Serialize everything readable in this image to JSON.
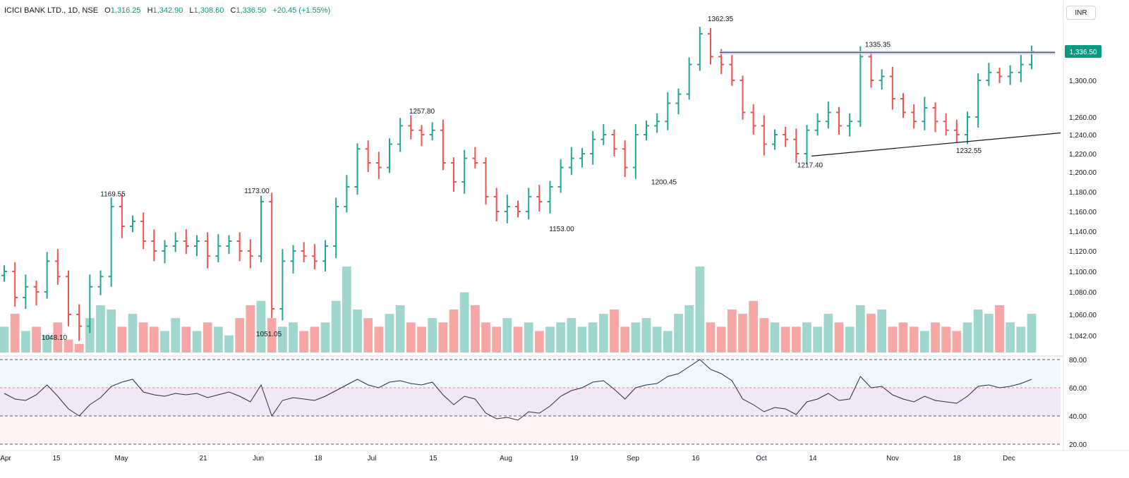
{
  "symbol_title": "ICICI BANK LTD., 1D, NSE",
  "ohlc": {
    "o_label": "O",
    "open": "1,316.25",
    "h_label": "H",
    "high": "1,342.90",
    "l_label": "L",
    "low": "1,308.60",
    "c_label": "C",
    "close": "1,336.50",
    "change": "+20.45 (+1.55%)"
  },
  "currency": "INR",
  "last_price_label": "1,336.50",
  "colors": {
    "up": "#26a69a",
    "down": "#ef5350",
    "vol_up": "#9fd6cd",
    "vol_down": "#f6a7a5",
    "rsi_line": "#7e57c2",
    "rsi_band": "#ede7f6",
    "trend": "#131722",
    "resistance": "#9fa8da",
    "price_tag": "#089981"
  },
  "chart_data": {
    "type": "ohlc-bar",
    "y_axis_price": {
      "ticks": [
        "1,300.00",
        "1,260.00",
        "1,240.00",
        "1,220.00",
        "1,200.00",
        "1,180.00",
        "1,160.00",
        "1,140.00",
        "1,120.00",
        "1,100.00",
        "1,080.00",
        "1,060.00",
        "1,042.00"
      ],
      "values": [
        1300,
        1260,
        1240,
        1220,
        1200,
        1180,
        1160,
        1140,
        1120,
        1100,
        1080,
        1060,
        1042
      ],
      "scale": "log-like"
    },
    "y_axis_rsi": {
      "ticks": [
        "80.00",
        "60.00",
        "40.00",
        "20.00"
      ],
      "values": [
        80,
        60,
        40,
        20
      ]
    },
    "x_axis_labels": [
      "Apr",
      "15",
      "May",
      "21",
      "Jun",
      "18",
      "Jul",
      "15",
      "Aug",
      "19",
      "Sep",
      "16",
      "Oct",
      "14",
      "Nov",
      "18",
      "Dec"
    ],
    "annotations": [
      {
        "text": "1169.55",
        "value": 1169.55
      },
      {
        "text": "1173.00",
        "value": 1173.0
      },
      {
        "text": "1048.10",
        "value": 1048.1
      },
      {
        "text": "1051.05",
        "value": 1051.05
      },
      {
        "text": "1257.80",
        "value": 1257.8
      },
      {
        "text": "1153.00",
        "value": 1153.0
      },
      {
        "text": "1200.45",
        "value": 1200.45
      },
      {
        "text": "1362.35",
        "value": 1362.35
      },
      {
        "text": "1335.35",
        "value": 1335.35
      },
      {
        "text": "1217.40",
        "value": 1217.4
      },
      {
        "text": "1232.55",
        "value": 1232.55
      }
    ],
    "resistance_level": 1335.35,
    "support_trendline": {
      "from": 1217.4,
      "to_extended": 1242
    },
    "rsi_levels": {
      "upper": 80,
      "mid": 60,
      "low": 40,
      "bottom": 20
    },
    "price_path": [
      1100,
      1075,
      1085,
      1080,
      1110,
      1095,
      1060,
      1050,
      1085,
      1095,
      1165,
      1145,
      1150,
      1130,
      1120,
      1125,
      1130,
      1125,
      1130,
      1115,
      1125,
      1130,
      1120,
      1115,
      1170,
      1065,
      1110,
      1120,
      1115,
      1110,
      1125,
      1165,
      1185,
      1225,
      1210,
      1205,
      1230,
      1250,
      1245,
      1240,
      1245,
      1210,
      1190,
      1215,
      1210,
      1175,
      1160,
      1165,
      1160,
      1175,
      1170,
      1185,
      1205,
      1215,
      1220,
      1235,
      1240,
      1225,
      1205,
      1240,
      1250,
      1255,
      1275,
      1285,
      1320,
      1355,
      1330,
      1320,
      1300,
      1265,
      1250,
      1230,
      1240,
      1235,
      1220,
      1245,
      1255,
      1265,
      1250,
      1255,
      1330,
      1300,
      1305,
      1280,
      1265,
      1255,
      1270,
      1255,
      1245,
      1240,
      1260,
      1300,
      1310,
      1305,
      1310,
      1320,
      1336.5
    ],
    "rsi_path": [
      56,
      52,
      51,
      55,
      62,
      54,
      45,
      40,
      48,
      53,
      61,
      64,
      66,
      57,
      55,
      54,
      56,
      55,
      56,
      53,
      55,
      57,
      54,
      50,
      62,
      40,
      51,
      53,
      52,
      51,
      54,
      58,
      62,
      66,
      62,
      60,
      64,
      65,
      63,
      62,
      64,
      55,
      48,
      54,
      52,
      42,
      38,
      39,
      37,
      43,
      42,
      47,
      54,
      58,
      60,
      64,
      65,
      59,
      52,
      60,
      62,
      63,
      68,
      70,
      75,
      80,
      73,
      70,
      65,
      52,
      48,
      43,
      46,
      45,
      41,
      50,
      52,
      56,
      51,
      52,
      68,
      60,
      61,
      55,
      52,
      50,
      54,
      51,
      50,
      49,
      54,
      61,
      62,
      60,
      61,
      63,
      66
    ],
    "volume_path": [
      0.3,
      0.45,
      0.25,
      0.3,
      0.2,
      0.35,
      0.15,
      0.1,
      0.4,
      0.55,
      0.5,
      0.3,
      0.45,
      0.35,
      0.3,
      0.25,
      0.4,
      0.3,
      0.25,
      0.35,
      0.3,
      0.2,
      0.4,
      0.55,
      0.6,
      0.4,
      0.3,
      0.35,
      0.25,
      0.3,
      0.35,
      0.6,
      1.0,
      0.5,
      0.4,
      0.3,
      0.45,
      0.55,
      0.35,
      0.3,
      0.4,
      0.35,
      0.5,
      0.7,
      0.55,
      0.35,
      0.3,
      0.4,
      0.3,
      0.35,
      0.25,
      0.3,
      0.35,
      0.4,
      0.3,
      0.35,
      0.45,
      0.5,
      0.3,
      0.35,
      0.4,
      0.3,
      0.25,
      0.45,
      0.55,
      1.0,
      0.35,
      0.3,
      0.5,
      0.45,
      0.6,
      0.4,
      0.35,
      0.3,
      0.3,
      0.35,
      0.3,
      0.45,
      0.35,
      0.3,
      0.55,
      0.45,
      0.5,
      0.3,
      0.35,
      0.3,
      0.25,
      0.35,
      0.3,
      0.25,
      0.35,
      0.5,
      0.45,
      0.55,
      0.35,
      0.3,
      0.45
    ]
  }
}
